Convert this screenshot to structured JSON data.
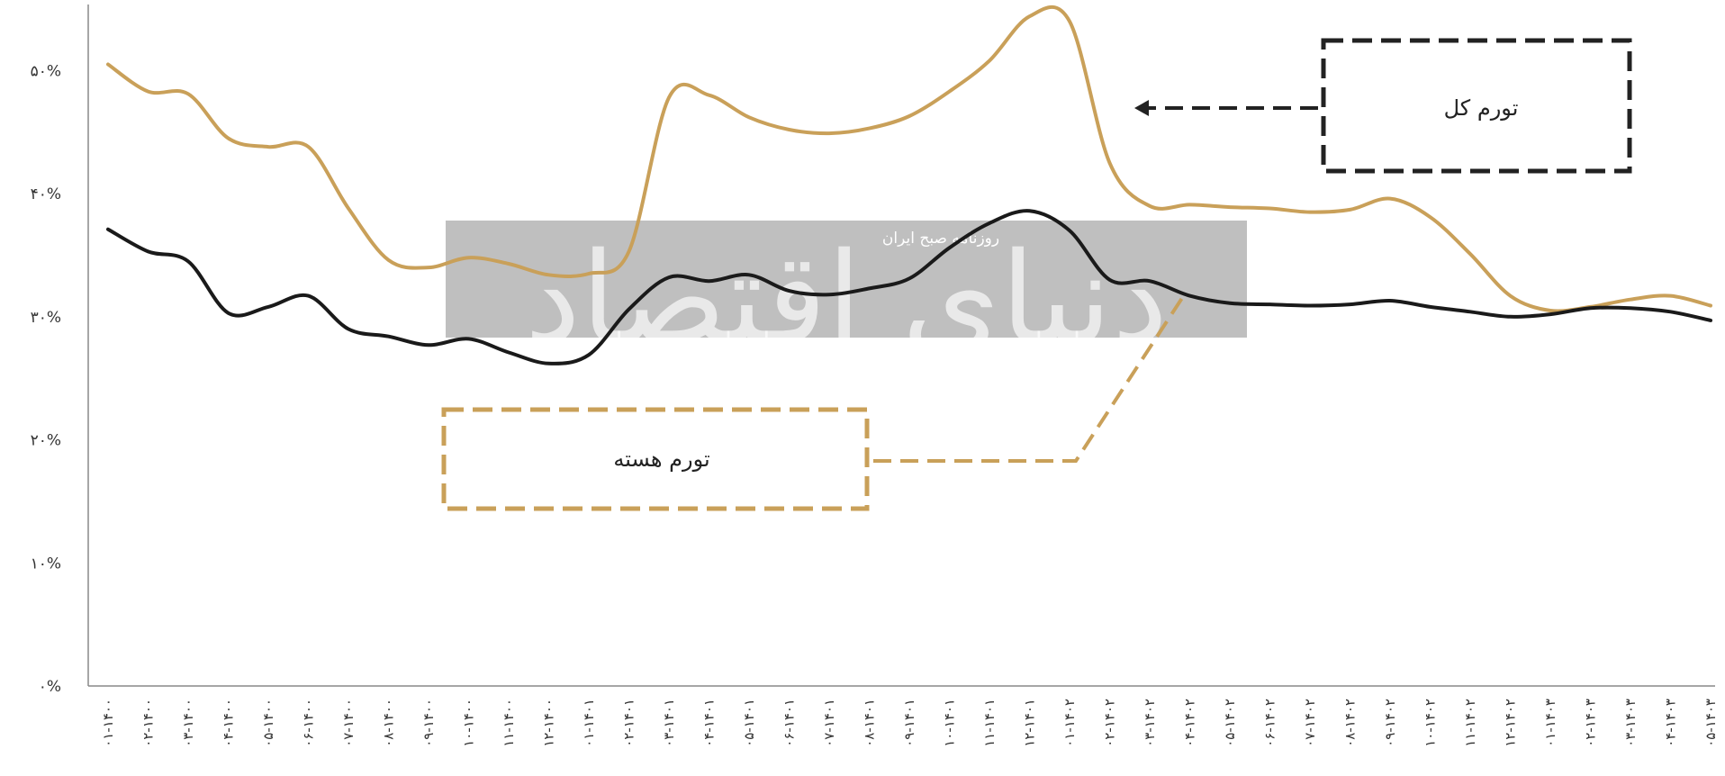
{
  "chart_data": {
    "type": "line",
    "ylim": [
      0,
      55
    ],
    "y_ticks": [
      {
        "value": 0,
        "label": "۰%"
      },
      {
        "value": 10,
        "label": "۱۰%"
      },
      {
        "value": 20,
        "label": "۲۰%"
      },
      {
        "value": 30,
        "label": "۳۰%"
      },
      {
        "value": 40,
        "label": "۴۰%"
      },
      {
        "value": 50,
        "label": "۵۰%"
      }
    ],
    "categories": [
      "۰۱-۱۴۰۰",
      "۰۲-۱۴۰۰",
      "۰۳-۱۴۰۰",
      "۰۴-۱۴۰۰",
      "۰۵-۱۴۰۰",
      "۰۶-۱۴۰۰",
      "۰۷-۱۴۰۰",
      "۰۸-۱۴۰۰",
      "۰۹-۱۴۰۰",
      "۱۰-۱۴۰۰",
      "۱۱-۱۴۰۰",
      "۱۲-۱۴۰۰",
      "۰۱-۱۴۰۱",
      "۰۲-۱۴۰۱",
      "۰۳-۱۴۰۱",
      "۰۴-۱۴۰۱",
      "۰۵-۱۴۰۱",
      "۰۶-۱۴۰۱",
      "۰۷-۱۴۰۱",
      "۰۸-۱۴۰۱",
      "۰۹-۱۴۰۱",
      "۱۰-۱۴۰۱",
      "۱۱-۱۴۰۱",
      "۱۲-۱۴۰۱",
      "۰۱-۱۴۰۲",
      "۰۲-۱۴۰۲",
      "۰۳-۱۴۰۲",
      "۰۴-۱۴۰۲",
      "۰۵-۱۴۰۲",
      "۰۶-۱۴۰۲",
      "۰۷-۱۴۰۲",
      "۰۸-۱۴۰۲",
      "۰۹-۱۴۰۲",
      "۱۰-۱۴۰۲",
      "۱۱-۱۴۰۲",
      "۱۲-۱۴۰۲",
      "۰۱-۱۴۰۳",
      "۰۲-۱۴۰۳",
      "۰۳-۱۴۰۳",
      "۰۴-۱۴۰۳",
      "۰۵-۱۴۰۳"
    ],
    "series": [
      {
        "name": "تورم کل",
        "color": "#C9A059",
        "values": [
          50.5,
          48.3,
          48.1,
          44.5,
          43.8,
          43.8,
          38.8,
          34.6,
          34.0,
          34.8,
          34.3,
          33.4,
          33.5,
          35.3,
          47.8,
          48.0,
          46.2,
          45.2,
          44.9,
          45.3,
          46.3,
          48.3,
          50.8,
          54.4,
          54.0,
          42.5,
          39.0,
          39.1,
          38.9,
          38.8,
          38.5,
          38.7,
          39.6,
          38.1,
          35.1,
          31.7,
          30.5,
          30.8,
          31.4,
          31.7,
          30.9
        ]
      },
      {
        "name": "تورم هسته",
        "color": "#1A1A1A",
        "values": [
          37.1,
          35.3,
          34.5,
          30.3,
          30.8,
          31.7,
          29.0,
          28.4,
          27.7,
          28.2,
          27.1,
          26.2,
          26.9,
          30.6,
          33.2,
          32.9,
          33.4,
          32.1,
          31.8,
          32.3,
          33.1,
          35.6,
          37.6,
          38.6,
          37.0,
          33.0,
          32.9,
          31.7,
          31.1,
          31.0,
          30.9,
          31.0,
          31.3,
          30.8,
          30.4,
          30.0,
          30.2,
          30.7,
          30.7,
          30.4,
          29.7
        ]
      }
    ],
    "annotations": [
      {
        "text": "تورم کل",
        "target": "تورم کل"
      },
      {
        "text": "تورم هسته",
        "target": "تورم هسته"
      }
    ],
    "watermark": {
      "main": "دنیای اقتصاد",
      "small": "روزنامه صبح ایران"
    },
    "grid": false,
    "legend": "none"
  }
}
